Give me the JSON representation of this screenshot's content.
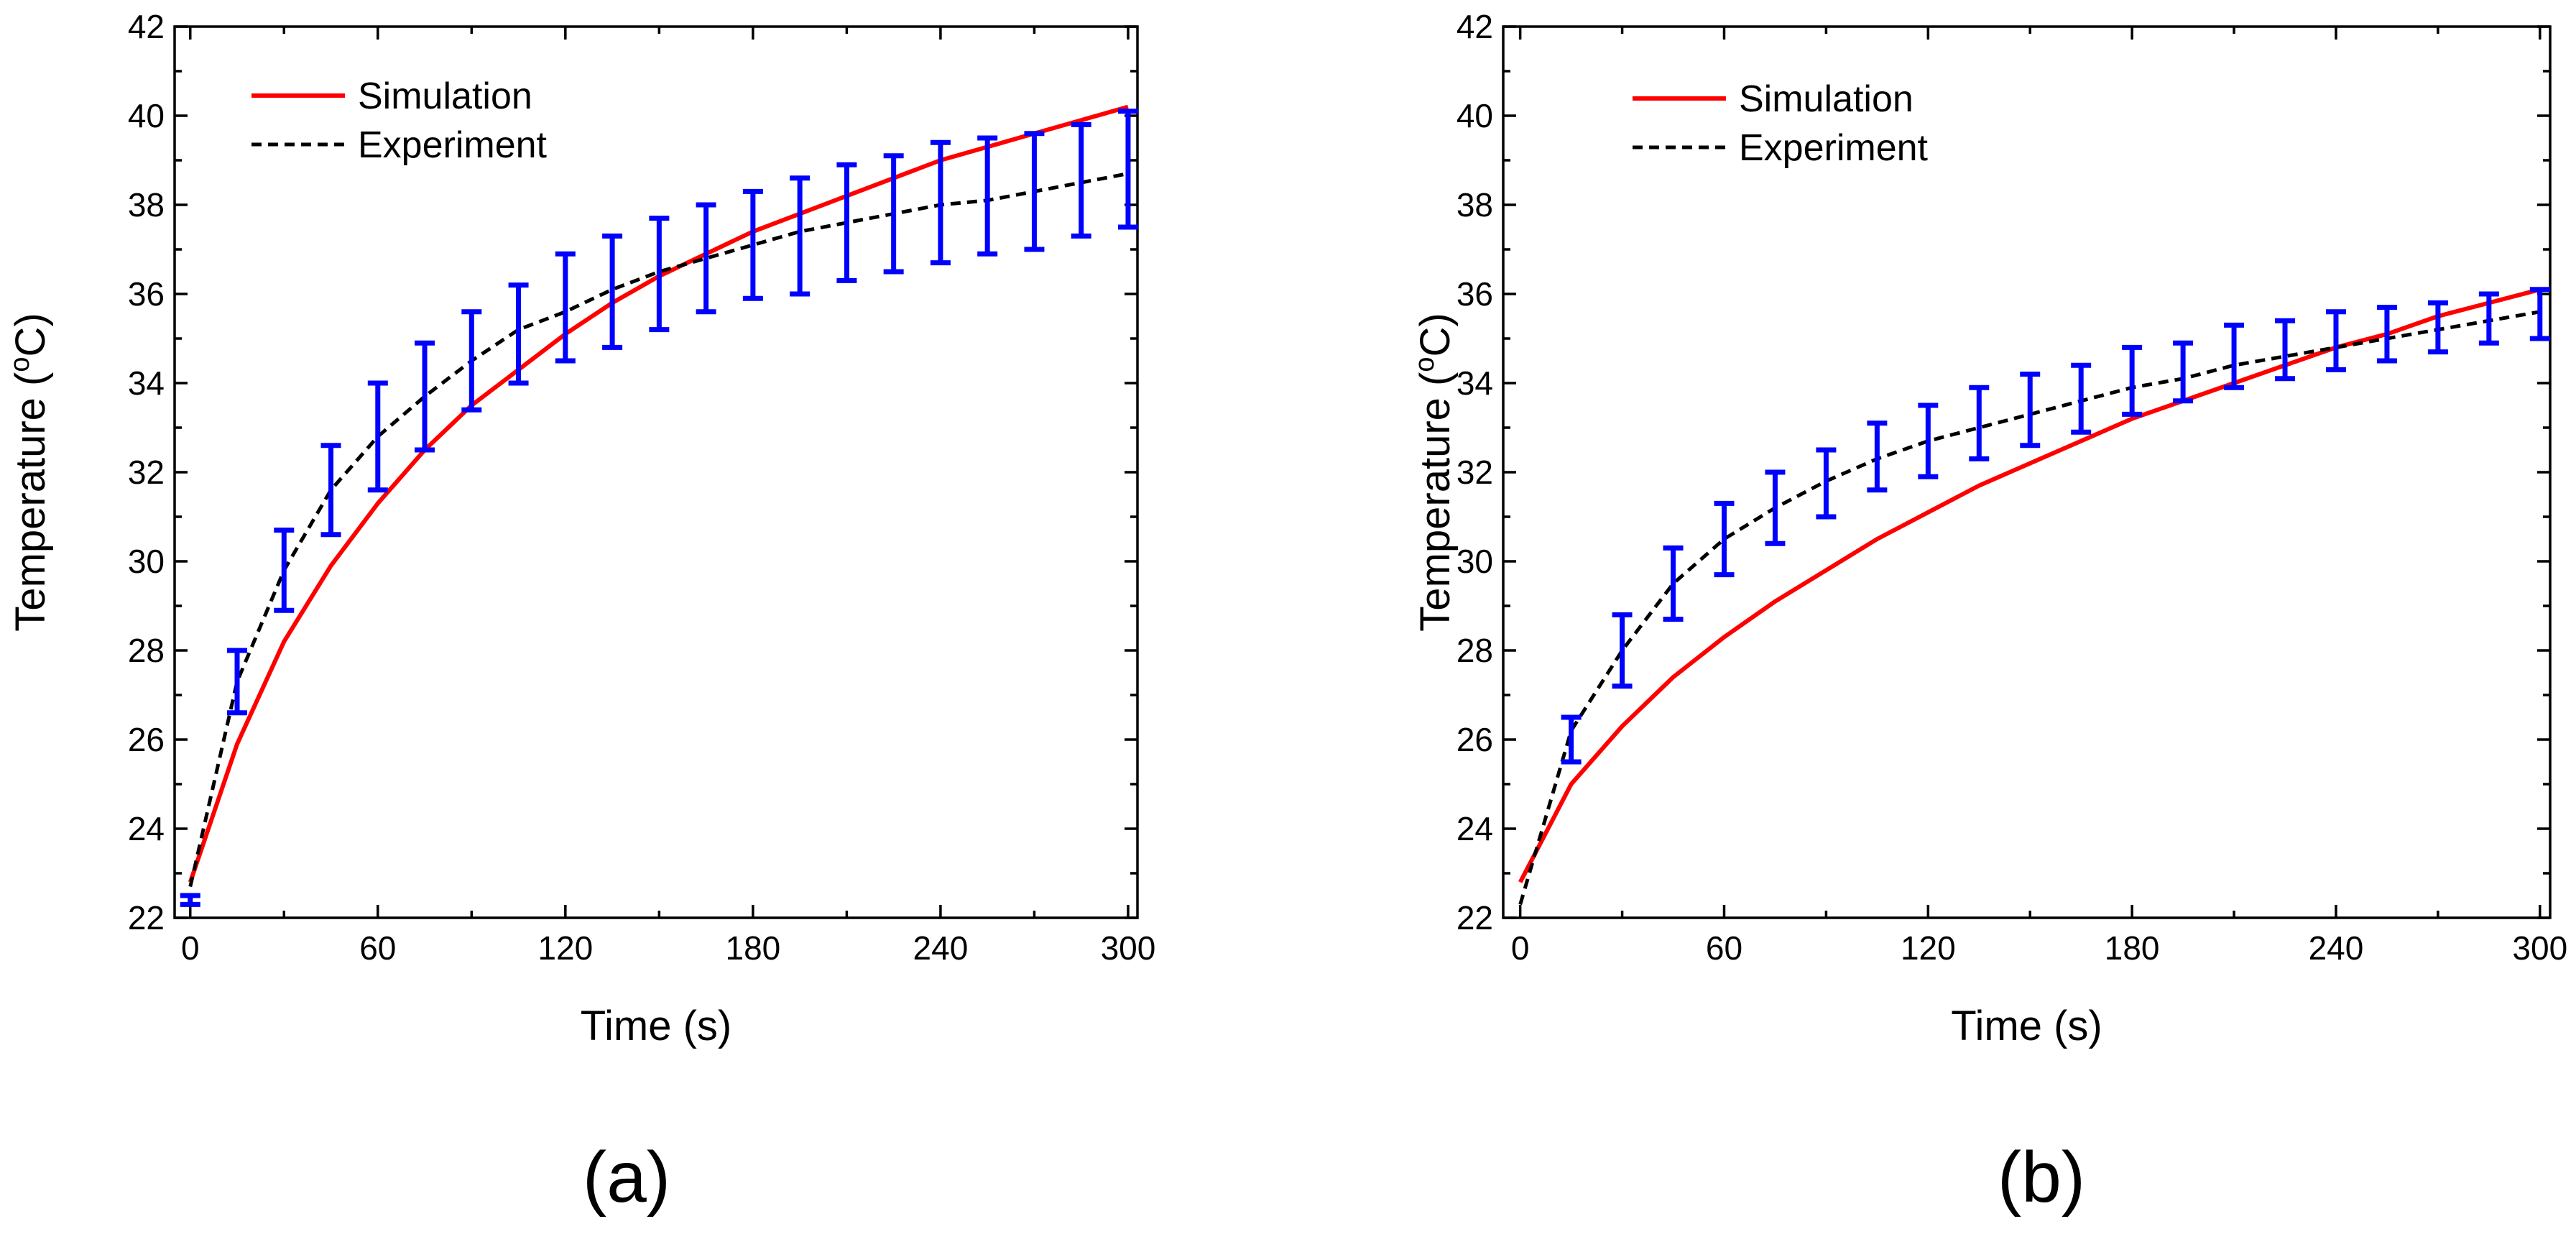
{
  "colors": {
    "simulation": "#ff0000",
    "experiment": "#000000",
    "error_bars": "#0000ff",
    "axes": "#000000"
  },
  "chart_data": [
    {
      "panel_label": "(a)",
      "type": "line",
      "xlabel": "Time (s)",
      "ylabel": "Temperature (",
      "ylabel_sup": "o",
      "ylabel_unit": "C)",
      "xlim": [
        -5,
        303
      ],
      "ylim": [
        22,
        42
      ],
      "xticks": [
        0,
        60,
        120,
        180,
        240,
        300
      ],
      "yticks": [
        22,
        24,
        26,
        28,
        30,
        32,
        34,
        36,
        38,
        40,
        42
      ],
      "legend": {
        "position": "top-left",
        "entries": [
          "Simulation",
          "Experiment"
        ]
      },
      "series": [
        {
          "name": "Simulation",
          "style": "solid",
          "x": [
            0,
            15,
            30,
            45,
            60,
            75,
            90,
            105,
            120,
            135,
            150,
            165,
            180,
            195,
            210,
            225,
            240,
            255,
            270,
            285,
            300
          ],
          "y": [
            22.8,
            25.9,
            28.2,
            29.9,
            31.3,
            32.5,
            33.5,
            34.3,
            35.1,
            35.8,
            36.4,
            36.9,
            37.4,
            37.8,
            38.2,
            38.6,
            39.0,
            39.3,
            39.6,
            39.9,
            40.2
          ]
        },
        {
          "name": "Experiment",
          "style": "dashed",
          "x": [
            0,
            15,
            30,
            45,
            60,
            75,
            90,
            105,
            120,
            135,
            150,
            165,
            180,
            195,
            210,
            225,
            240,
            255,
            270,
            285,
            300
          ],
          "y": [
            22.7,
            27.3,
            29.8,
            31.6,
            32.8,
            33.7,
            34.5,
            35.2,
            35.6,
            36.1,
            36.5,
            36.8,
            37.1,
            37.4,
            37.6,
            37.8,
            38.0,
            38.1,
            38.3,
            38.5,
            38.7
          ]
        }
      ],
      "error_bars": {
        "x": [
          0,
          15,
          30,
          45,
          60,
          75,
          90,
          105,
          120,
          135,
          150,
          165,
          180,
          195,
          210,
          225,
          240,
          255,
          270,
          285,
          300
        ],
        "low": [
          22.3,
          26.6,
          28.9,
          30.6,
          31.6,
          32.5,
          33.4,
          34.0,
          34.5,
          34.8,
          35.2,
          35.6,
          35.9,
          36.0,
          36.3,
          36.5,
          36.7,
          36.9,
          37.0,
          37.3,
          37.5
        ],
        "high": [
          22.5,
          28.0,
          30.7,
          32.6,
          34.0,
          34.9,
          35.6,
          36.2,
          36.9,
          37.3,
          37.7,
          38.0,
          38.3,
          38.6,
          38.9,
          39.1,
          39.4,
          39.5,
          39.6,
          39.8,
          40.1
        ]
      }
    },
    {
      "panel_label": "(b)",
      "type": "line",
      "xlabel": "Time (s)",
      "ylabel": "Temperature (",
      "ylabel_sup": "o",
      "ylabel_unit": "C)",
      "xlim": [
        -5,
        303
      ],
      "ylim": [
        22,
        42
      ],
      "xticks": [
        0,
        60,
        120,
        180,
        240,
        300
      ],
      "yticks": [
        22,
        24,
        26,
        28,
        30,
        32,
        34,
        36,
        38,
        40,
        42
      ],
      "legend": {
        "position": "top-left",
        "entries": [
          "Simulation",
          "Experiment"
        ]
      },
      "series": [
        {
          "name": "Simulation",
          "style": "solid",
          "x": [
            0,
            15,
            30,
            45,
            60,
            75,
            90,
            105,
            120,
            135,
            150,
            165,
            180,
            195,
            210,
            225,
            240,
            255,
            270,
            285,
            300
          ],
          "y": [
            22.8,
            25.0,
            26.3,
            27.4,
            28.3,
            29.1,
            29.8,
            30.5,
            31.1,
            31.7,
            32.2,
            32.7,
            33.2,
            33.6,
            34.0,
            34.4,
            34.8,
            35.1,
            35.5,
            35.8,
            36.1
          ]
        },
        {
          "name": "Experiment",
          "style": "dashed",
          "x": [
            0,
            15,
            30,
            45,
            60,
            75,
            90,
            105,
            120,
            135,
            150,
            165,
            180,
            195,
            210,
            225,
            240,
            255,
            270,
            285,
            300
          ],
          "y": [
            22.3,
            26.2,
            28.0,
            29.5,
            30.5,
            31.2,
            31.8,
            32.3,
            32.7,
            33.0,
            33.3,
            33.6,
            33.9,
            34.1,
            34.4,
            34.6,
            34.8,
            35.0,
            35.2,
            35.4,
            35.6
          ]
        }
      ],
      "error_bars": {
        "x": [
          15,
          30,
          45,
          60,
          75,
          90,
          105,
          120,
          135,
          150,
          165,
          180,
          195,
          210,
          225,
          240,
          255,
          270,
          285,
          300
        ],
        "low": [
          25.5,
          27.2,
          28.7,
          29.7,
          30.4,
          31.0,
          31.6,
          31.9,
          32.3,
          32.6,
          32.9,
          33.3,
          33.6,
          33.9,
          34.1,
          34.3,
          34.5,
          34.7,
          34.9,
          35.0
        ],
        "high": [
          26.5,
          28.8,
          30.3,
          31.3,
          32.0,
          32.5,
          33.1,
          33.5,
          33.9,
          34.2,
          34.4,
          34.8,
          34.9,
          35.3,
          35.4,
          35.6,
          35.7,
          35.8,
          36.0,
          36.1
        ]
      }
    }
  ]
}
